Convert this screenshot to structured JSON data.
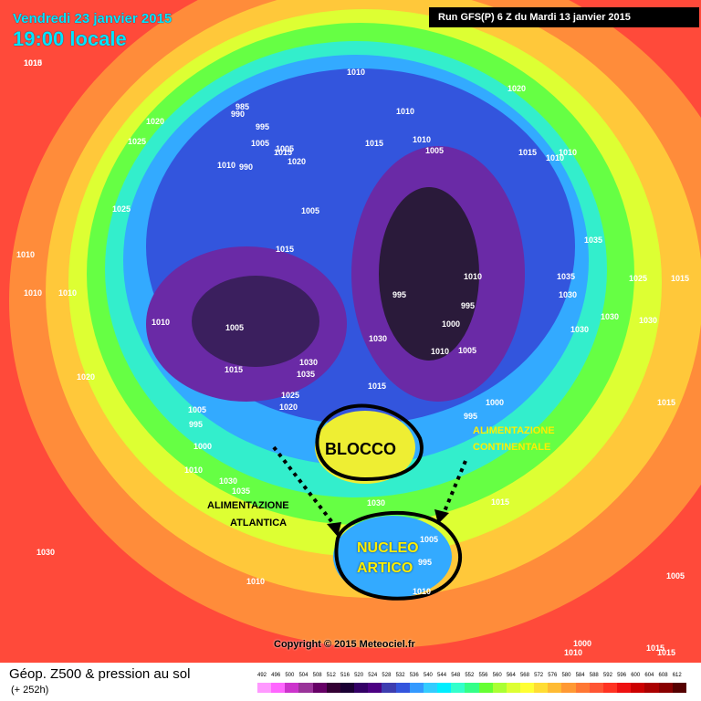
{
  "header": {
    "date": "Vendredi 23 janvier 2015",
    "time": "19:00 locale",
    "run": "Run GFS(P) 6 Z du Mardi 13 janvier 2015"
  },
  "footer": {
    "title": "Géop. Z500 & pression au sol",
    "subtitle": "(+ 252h)",
    "copyright": "Copyright © 2015 Meteociel.fr"
  },
  "legend": {
    "labels": [
      "492",
      "496",
      "500",
      "504",
      "508",
      "512",
      "516",
      "520",
      "524",
      "528",
      "532",
      "536",
      "540",
      "544",
      "548",
      "552",
      "556",
      "560",
      "564",
      "568",
      "572",
      "576",
      "580",
      "584",
      "588",
      "592",
      "596",
      "600",
      "604",
      "608",
      "612"
    ],
    "colors": [
      "#ff99ff",
      "#ff66ff",
      "#cc33cc",
      "#993399",
      "#660066",
      "#330033",
      "#1a0033",
      "#330066",
      "#4b0082",
      "#3d3db0",
      "#3355dd",
      "#3399ff",
      "#33ccff",
      "#00eeff",
      "#33ffcc",
      "#33ff88",
      "#66ff33",
      "#aaff33",
      "#ddff33",
      "#ffff33",
      "#ffdd33",
      "#ffbb33",
      "#ff9933",
      "#ff7733",
      "#ff5533",
      "#ff3322",
      "#ee1111",
      "#cc0000",
      "#aa0000",
      "#880000",
      "#550000"
    ]
  },
  "annotations": {
    "blocco": "BLOCCO",
    "nucleo": "NUCLEO",
    "artico": "ARTICO",
    "atlantica_1": "ALIMENTAZIONE",
    "atlantica_2": "ATLANTICA",
    "continentale_1": "ALIMENTAZIONE",
    "continentale_2": "CONTINENTALE"
  },
  "pressure_labels": [
    "1015",
    "1020",
    "1025",
    "1010",
    "985",
    "990",
    "995",
    "1005",
    "1010",
    "1015",
    "1020",
    "1010",
    "990",
    "1005",
    "1005",
    "1015",
    "1010",
    "1005",
    "1020",
    "1010",
    "1010",
    "1015",
    "1010",
    "1025",
    "1010",
    "1010",
    "1015",
    "1035",
    "1010",
    "1005",
    "1020",
    "1030",
    "995",
    "995",
    "1000",
    "1010",
    "1030",
    "1035",
    "1030",
    "1035",
    "1010",
    "1025",
    "1015",
    "1005",
    "995",
    "1020",
    "1030",
    "1015",
    "1000",
    "1010",
    "1030",
    "1035",
    "1030",
    "995",
    "1000",
    "1005",
    "1025",
    "1030",
    "1015",
    "1015",
    "1005",
    "995",
    "1010",
    "1015",
    "1030",
    "1010",
    "1005",
    "1000",
    "1010",
    "1015",
    "1015",
    "1030",
    "1010"
  ]
}
